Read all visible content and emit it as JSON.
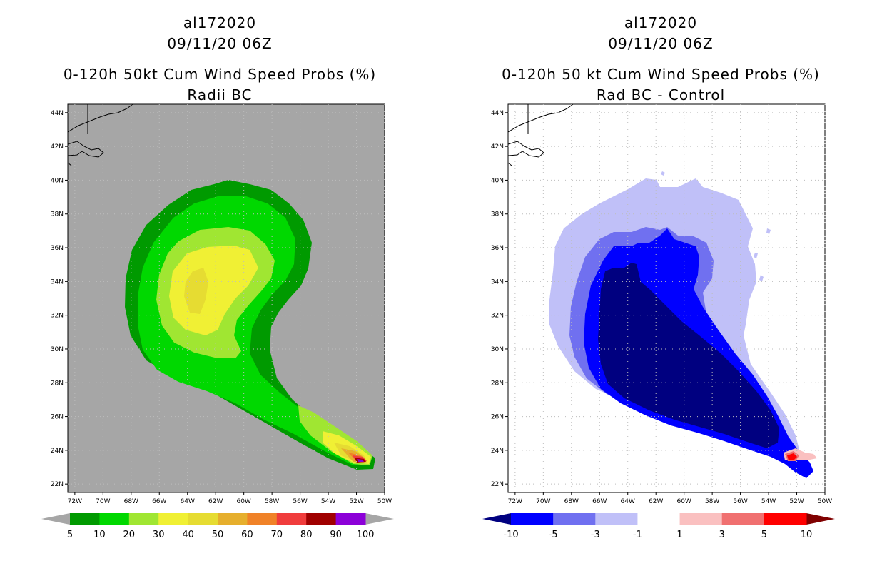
{
  "left": {
    "title_lines": [
      "al172020",
      "09/11/20 06Z",
      "0-120h 50kt Cum Wind Speed Probs (%)",
      "Radii BC"
    ],
    "colorbar": {
      "labels": [
        "5",
        "10",
        "20",
        "30",
        "40",
        "50",
        "60",
        "70",
        "80",
        "90",
        "100"
      ],
      "colors": [
        "#009a00",
        "#00d800",
        "#a0e632",
        "#f0f034",
        "#e6dc32",
        "#e6af2d",
        "#f08228",
        "#f03c3c",
        "#a00000",
        "#8c00d8"
      ],
      "underflow_color": "#a6a6a6",
      "overflow_color": "#a6a6a6"
    },
    "background_color": "#a6a6a6"
  },
  "right": {
    "title_lines": [
      "al172020",
      "09/11/20 06Z",
      "0-120h 50 kt Cum Wind Speed Probs (%)",
      "Rad BC - Control"
    ],
    "colorbar": {
      "labels": [
        "-10",
        "-5",
        "-3",
        "-1",
        "1",
        "3",
        "5",
        "10"
      ],
      "colors": [
        "#0000ff",
        "#7070f0",
        "#c0c0f8",
        "#ffffff",
        "#fac0c0",
        "#f07070",
        "#ff0000"
      ],
      "underflow_color": "#000080",
      "overflow_color": "#800000"
    },
    "background_color": "#ffffff"
  },
  "axes": {
    "lat_labels": [
      "44N",
      "42N",
      "40N",
      "38N",
      "36N",
      "34N",
      "32N",
      "30N",
      "28N",
      "26N",
      "24N",
      "22N"
    ],
    "lon_labels": [
      "72W",
      "70W",
      "68W",
      "66W",
      "64W",
      "62W",
      "60W",
      "58W",
      "56W",
      "54W",
      "52W",
      "50W"
    ],
    "lat_range": [
      21.5,
      44.5
    ],
    "lon_range": [
      -72.5,
      -50
    ]
  }
}
